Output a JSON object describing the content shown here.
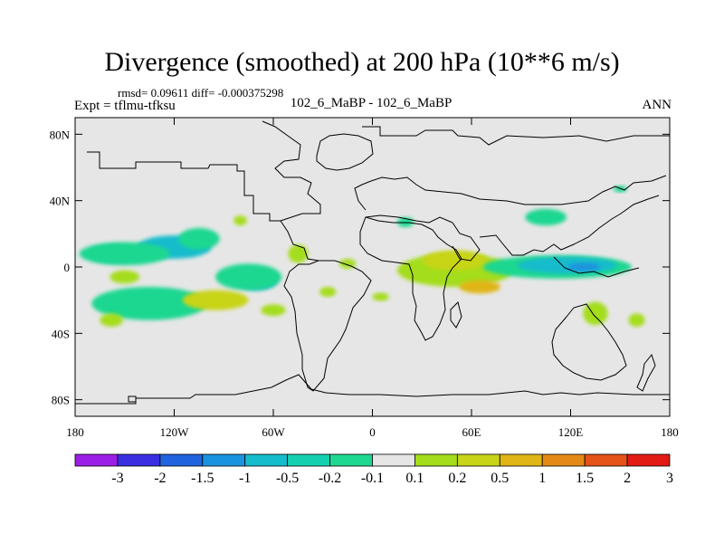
{
  "chart_data": {
    "type": "heatmap",
    "title": "Divergence (smoothed) at 200 hPa (10**6 m/s)",
    "stats_text": "rmsd= 0.09611 diff= -0.000375298",
    "experiment_text": "Expt = tflmu-tfksu",
    "center_label": "102_6_MaBP - 102_6_MaBP",
    "season_label": "ANN",
    "x_ticks": [
      {
        "value": -180,
        "label": "180"
      },
      {
        "value": -120,
        "label": "120W"
      },
      {
        "value": -60,
        "label": "60W"
      },
      {
        "value": 0,
        "label": "0"
      },
      {
        "value": 60,
        "label": "60E"
      },
      {
        "value": 120,
        "label": "120E"
      },
      {
        "value": 180,
        "label": "180"
      }
    ],
    "y_ticks": [
      {
        "value": 80,
        "label": "80N"
      },
      {
        "value": 40,
        "label": "40N"
      },
      {
        "value": 0,
        "label": "0"
      },
      {
        "value": -40,
        "label": "40S"
      },
      {
        "value": -80,
        "label": "80S"
      }
    ],
    "xlim": [
      -180,
      180
    ],
    "ylim": [
      -90,
      90
    ],
    "colorbar": {
      "labels": [
        "-3",
        "-2",
        "-1.5",
        "-1",
        "-0.5",
        "-0.2",
        "-0.1",
        "0.1",
        "0.2",
        "0.5",
        "1",
        "1.5",
        "2",
        "3"
      ],
      "colors": [
        "#9b1fe6",
        "#3a2ee0",
        "#1f63de",
        "#1a93de",
        "#14bccc",
        "#14d0b0",
        "#1ed790",
        "#e6e6e6",
        "#a4dd1c",
        "#c8d418",
        "#e0b616",
        "#e48916",
        "#e45318",
        "#e21b14"
      ]
    },
    "regions": [
      {
        "lon": -120,
        "lat": 12,
        "w": 45,
        "h": 14,
        "color": "#14bccc"
      },
      {
        "lon": -158,
        "lat": 8,
        "w": 28,
        "h": 10,
        "color": "#14bccc"
      },
      {
        "lon": -150,
        "lat": 8,
        "w": 55,
        "h": 14,
        "color": "#1ed790"
      },
      {
        "lon": -105,
        "lat": 17,
        "w": 25,
        "h": 13,
        "color": "#1ed790"
      },
      {
        "lon": -70,
        "lat": -8,
        "w": 25,
        "h": 12,
        "color": "#14bccc"
      },
      {
        "lon": -75,
        "lat": -6,
        "w": 40,
        "h": 16,
        "color": "#1ed790"
      },
      {
        "lon": -130,
        "lat": -22,
        "w": 40,
        "h": 14,
        "color": "#14bccc"
      },
      {
        "lon": -135,
        "lat": -22,
        "w": 70,
        "h": 20,
        "color": "#1ed790"
      },
      {
        "lon": -95,
        "lat": -20,
        "w": 40,
        "h": 12,
        "color": "#c8d418"
      },
      {
        "lon": -158,
        "lat": -32,
        "w": 14,
        "h": 8,
        "color": "#a4dd1c"
      },
      {
        "lon": -60,
        "lat": -26,
        "w": 15,
        "h": 7,
        "color": "#a4dd1c"
      },
      {
        "lon": -45,
        "lat": 8,
        "w": 12,
        "h": 11,
        "color": "#a4dd1c"
      },
      {
        "lon": -150,
        "lat": -6,
        "w": 18,
        "h": 8,
        "color": "#a4dd1c"
      },
      {
        "lon": -80,
        "lat": 28,
        "w": 8,
        "h": 6,
        "color": "#a4dd1c"
      },
      {
        "lon": 20,
        "lat": 27,
        "w": 10,
        "h": 6,
        "color": "#1ed790"
      },
      {
        "lon": -15,
        "lat": 2,
        "w": 10,
        "h": 6,
        "color": "#a4dd1c"
      },
      {
        "lon": 50,
        "lat": -2,
        "w": 70,
        "h": 20,
        "color": "#a4dd1c"
      },
      {
        "lon": 50,
        "lat": 4,
        "w": 40,
        "h": 12,
        "color": "#c8d418"
      },
      {
        "lon": 65,
        "lat": -12,
        "w": 25,
        "h": 8,
        "color": "#e0b616"
      },
      {
        "lon": 112,
        "lat": 0,
        "w": 90,
        "h": 14,
        "color": "#1ed790"
      },
      {
        "lon": 118,
        "lat": 1,
        "w": 60,
        "h": 10,
        "color": "#14bccc"
      },
      {
        "lon": 128,
        "lat": 0,
        "w": 20,
        "h": 5,
        "color": "#1a93de"
      },
      {
        "lon": 105,
        "lat": 30,
        "w": 25,
        "h": 10,
        "color": "#1ed790"
      },
      {
        "lon": 135,
        "lat": -28,
        "w": 15,
        "h": 14,
        "color": "#a4dd1c"
      },
      {
        "lon": 160,
        "lat": -32,
        "w": 10,
        "h": 8,
        "color": "#a4dd1c"
      },
      {
        "lon": 150,
        "lat": 47,
        "w": 8,
        "h": 4,
        "color": "#1ed790"
      },
      {
        "lon": -27,
        "lat": -15,
        "w": 10,
        "h": 6,
        "color": "#a4dd1c"
      },
      {
        "lon": 5,
        "lat": -18,
        "w": 10,
        "h": 5,
        "color": "#a4dd1c"
      }
    ]
  }
}
